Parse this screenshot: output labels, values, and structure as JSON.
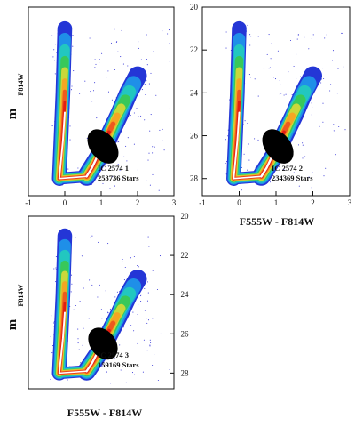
{
  "colors": {
    "points": "#3a3ad8",
    "density_levels": [
      "#2436d6",
      "#1f8fe8",
      "#22c7c0",
      "#38c85a",
      "#c9d83a",
      "#f5a623",
      "#ee5a1e",
      "#e21f12",
      "#ffffff",
      "#000000"
    ],
    "frame": "#111111"
  },
  "chart_data": [
    {
      "type": "scatter",
      "rendering": "density-contour color-magnitude diagram",
      "annotation_lines": [
        "IC 2574 1",
        "253736 Stars"
      ],
      "xlabel": "",
      "ylabel": "m",
      "ylabel_subscript": "F814W",
      "xlim": [
        -1,
        3
      ],
      "ylim": [
        28.8,
        20
      ],
      "y_inverted": true,
      "xticks": [
        "-1",
        "0",
        "1",
        "2",
        "3"
      ],
      "yticks": [],
      "main_sequence_ridge": [
        [
          -0.15,
          28.0
        ],
        [
          -0.05,
          24.0
        ],
        [
          0.0,
          21.0
        ]
      ],
      "red_giant_branch": [
        [
          0.6,
          27.9
        ],
        [
          1.0,
          26.8
        ],
        [
          1.5,
          25.0
        ],
        [
          1.75,
          24.0
        ],
        [
          2.0,
          23.2
        ]
      ],
      "densest_region": {
        "color": [
          0.7,
          1.4
        ],
        "mag": [
          25.6,
          27.4
        ]
      }
    },
    {
      "type": "scatter",
      "rendering": "density-contour color-magnitude diagram",
      "annotation_lines": [
        "IC 2574 2",
        "234369 Stars"
      ],
      "xlabel": "F555W - F814W",
      "ylabel": "",
      "xlim": [
        -1,
        3
      ],
      "ylim": [
        28.8,
        20
      ],
      "y_inverted": true,
      "xticks": [
        "-1",
        "0",
        "1",
        "2",
        "3"
      ],
      "yticks": [
        "20",
        "22",
        "24",
        "26",
        "28"
      ],
      "main_sequence_ridge": [
        [
          -0.15,
          28.0
        ],
        [
          -0.05,
          24.0
        ],
        [
          0.0,
          21.0
        ]
      ],
      "red_giant_branch": [
        [
          0.6,
          27.9
        ],
        [
          1.0,
          26.8
        ],
        [
          1.5,
          25.0
        ],
        [
          1.75,
          24.0
        ],
        [
          2.0,
          23.2
        ]
      ],
      "densest_region": {
        "color": [
          0.7,
          1.4
        ],
        "mag": [
          25.6,
          27.4
        ]
      }
    },
    {
      "type": "scatter",
      "rendering": "density-contour color-magnitude diagram",
      "annotation_lines": [
        "IC 2574 3",
        "159169 Stars"
      ],
      "xlabel": "F555W - F814W",
      "ylabel": "m",
      "ylabel_subscript": "F814W",
      "xlim": [
        -1,
        3
      ],
      "ylim": [
        28.8,
        20
      ],
      "y_inverted": true,
      "xticks": [],
      "yticks": [
        "20",
        "22",
        "24",
        "26",
        "28"
      ],
      "main_sequence_ridge": [
        [
          -0.15,
          28.0
        ],
        [
          -0.05,
          24.0
        ],
        [
          0.0,
          21.0
        ]
      ],
      "red_giant_branch": [
        [
          0.6,
          27.9
        ],
        [
          1.0,
          26.8
        ],
        [
          1.5,
          25.0
        ],
        [
          1.75,
          24.0
        ],
        [
          2.0,
          23.2
        ]
      ],
      "densest_region": {
        "color": [
          0.7,
          1.4
        ],
        "mag": [
          25.6,
          27.4
        ]
      }
    }
  ]
}
